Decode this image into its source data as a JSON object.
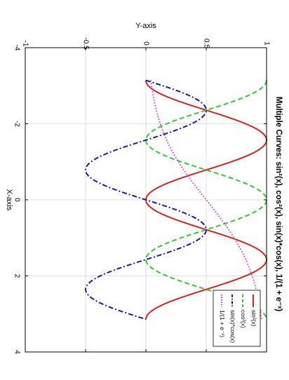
{
  "chart_data": {
    "type": "line",
    "title": "Multiple Curves: sin²(x), cos²(x), sin(x)*cos(x), 1/(1 + e⁻ˣ)",
    "xlabel": "X-axis",
    "ylabel": "Y-axis",
    "xlim": [
      -4,
      4
    ],
    "ylim": [
      -1,
      1
    ],
    "x_ticks": [
      "-4",
      "-2",
      "0",
      "2",
      "4"
    ],
    "y_ticks": [
      "-1",
      "-0.5",
      "0",
      "0.5",
      "1"
    ],
    "grid": true,
    "legend_position": "upper-left of the page (rotated plot)",
    "x_domain": [
      -3.1416,
      3.1416
    ],
    "series": [
      {
        "name": "sin²(x)",
        "expr": "sin2",
        "color": "#dd2222",
        "dash": "solid",
        "x": [
          -3.1416,
          -2.3562,
          -1.5708,
          -0.7854,
          0,
          0.7854,
          1.5708,
          2.3562,
          3.1416
        ],
        "values": [
          0,
          0.5,
          1,
          0.5,
          0,
          0.5,
          1,
          0.5,
          0
        ]
      },
      {
        "name": "cos²(x)",
        "expr": "cos2",
        "color": "#33cc33",
        "dash": "dashed",
        "x": [
          -3.1416,
          -2.3562,
          -1.5708,
          -0.7854,
          0,
          0.7854,
          1.5708,
          2.3562,
          3.1416
        ],
        "values": [
          1,
          0.5,
          0,
          0.5,
          1,
          0.5,
          0,
          0.5,
          1
        ]
      },
      {
        "name": "sin(x)*cos(x)",
        "expr": "sincos",
        "color": "#1a1aaa",
        "dash": "dashdot",
        "x": [
          -3.1416,
          -2.3562,
          -1.5708,
          -0.7854,
          0,
          0.7854,
          1.5708,
          2.3562,
          3.1416
        ],
        "values": [
          0,
          0.5,
          0,
          -0.5,
          0,
          0.5,
          0,
          -0.5,
          0
        ]
      },
      {
        "name": "1/(1 + e⁻ˣ)",
        "expr": "sigmoid",
        "color": "#dd22dd",
        "dash": "dotted",
        "x": [
          -3.1416,
          -2,
          -1,
          0,
          1,
          2,
          3.1416
        ],
        "values": [
          0.041,
          0.119,
          0.269,
          0.5,
          0.731,
          0.881,
          0.959
        ]
      }
    ]
  }
}
